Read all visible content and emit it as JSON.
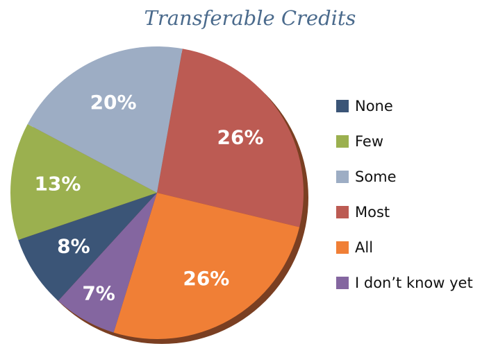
{
  "chart_data": {
    "type": "pie",
    "title": "Transferable Credits",
    "categories": [
      "None",
      "Few",
      "Some",
      "Most",
      "All",
      "I don’t know yet"
    ],
    "values": [
      8,
      13,
      20,
      26,
      26,
      7
    ],
    "value_labels": [
      "8%",
      "13%",
      "20%",
      "26%",
      "26%",
      "7%"
    ],
    "colors": [
      "#3b5577",
      "#9bb04f",
      "#9dadc4",
      "#bc5b53",
      "#f07f36",
      "#8466a0"
    ],
    "legend": "right"
  }
}
